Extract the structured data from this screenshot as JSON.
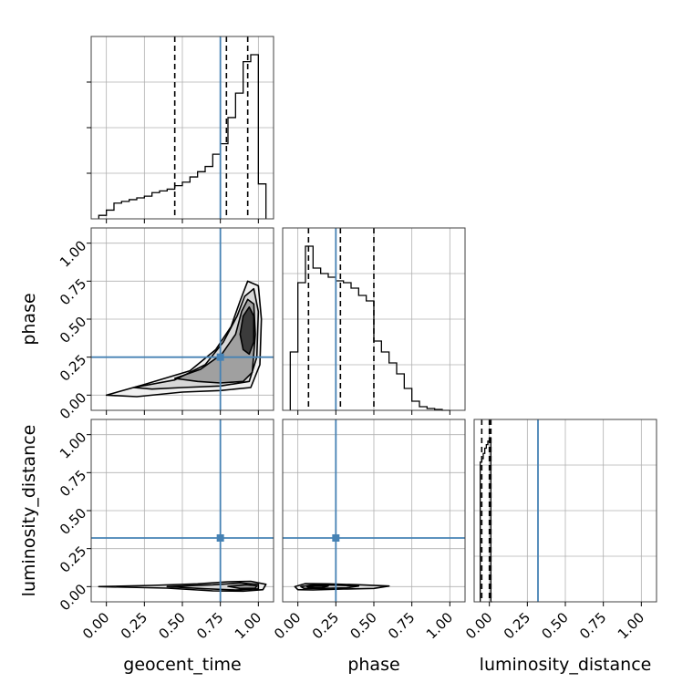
{
  "chart_data": {
    "type": "corner",
    "parameters": [
      "geocent_time",
      "phase",
      "luminosity_distance"
    ],
    "truths": {
      "geocent_time": 0.75,
      "phase": 0.25,
      "luminosity_distance": 0.32
    },
    "truth_color": "#4682b4",
    "tick_labels": [
      "0.00",
      "0.25",
      "0.50",
      "0.75",
      "1.00"
    ],
    "axis_range": [
      -0.1,
      1.1
    ],
    "grid": true,
    "histograms": [
      {
        "param": "geocent_time",
        "bin_edges": [
          -0.05,
          0.0,
          0.05,
          0.1,
          0.15,
          0.2,
          0.25,
          0.3,
          0.35,
          0.4,
          0.45,
          0.5,
          0.55,
          0.6,
          0.65,
          0.7,
          0.75,
          0.8,
          0.85,
          0.9,
          0.95,
          1.0,
          1.05
        ],
        "counts": [
          0.02,
          0.05,
          0.09,
          0.1,
          0.11,
          0.12,
          0.13,
          0.15,
          0.16,
          0.17,
          0.19,
          0.21,
          0.24,
          0.27,
          0.3,
          0.37,
          0.43,
          0.58,
          0.72,
          0.9,
          0.94,
          0.2
        ],
        "quantiles": [
          0.45,
          0.79,
          0.93
        ]
      },
      {
        "param": "phase",
        "bin_edges": [
          -0.05,
          0.0,
          0.05,
          0.1,
          0.15,
          0.2,
          0.25,
          0.3,
          0.35,
          0.4,
          0.45,
          0.5,
          0.55,
          0.6,
          0.65,
          0.7,
          0.75,
          0.8,
          0.85,
          0.9,
          0.95,
          1.0
        ],
        "counts": [
          0.32,
          0.7,
          0.9,
          0.78,
          0.75,
          0.73,
          0.71,
          0.7,
          0.67,
          0.63,
          0.6,
          0.38,
          0.32,
          0.26,
          0.2,
          0.12,
          0.05,
          0.02,
          0.01,
          0.005,
          0.0
        ],
        "quantiles": [
          0.07,
          0.28,
          0.5
        ]
      },
      {
        "param": "luminosity_distance",
        "bin_edges": [
          -0.06,
          -0.05,
          -0.04,
          -0.03,
          -0.02,
          -0.01,
          0.0,
          0.01,
          0.02
        ],
        "counts": [
          0.8,
          0.82,
          0.85,
          0.88,
          0.9,
          0.92,
          0.94,
          0.0
        ],
        "quantiles": [
          -0.05,
          0.0,
          0.01
        ]
      }
    ],
    "panels_2d": [
      {
        "x": "geocent_time",
        "y": "phase",
        "contours": [
          [
            [
              0.0,
              0.0
            ],
            [
              0.25,
              0.07
            ],
            [
              0.55,
              0.16
            ],
            [
              0.72,
              0.3
            ],
            [
              0.82,
              0.45
            ],
            [
              0.88,
              0.62
            ],
            [
              0.93,
              0.75
            ],
            [
              1.0,
              0.72
            ],
            [
              1.02,
              0.5
            ],
            [
              1.01,
              0.2
            ],
            [
              0.95,
              0.05
            ],
            [
              0.75,
              0.03
            ],
            [
              0.5,
              0.02
            ],
            [
              0.2,
              -0.01
            ],
            [
              0.0,
              0.0
            ]
          ],
          [
            [
              0.18,
              0.05
            ],
            [
              0.45,
              0.1
            ],
            [
              0.65,
              0.2
            ],
            [
              0.77,
              0.35
            ],
            [
              0.86,
              0.52
            ],
            [
              0.91,
              0.65
            ],
            [
              0.97,
              0.7
            ],
            [
              1.0,
              0.55
            ],
            [
              0.99,
              0.25
            ],
            [
              0.94,
              0.09
            ],
            [
              0.75,
              0.06
            ],
            [
              0.5,
              0.05
            ],
            [
              0.3,
              0.04
            ],
            [
              0.18,
              0.05
            ]
          ],
          [
            [
              0.45,
              0.11
            ],
            [
              0.62,
              0.17
            ],
            [
              0.76,
              0.27
            ],
            [
              0.85,
              0.4
            ],
            [
              0.89,
              0.55
            ],
            [
              0.93,
              0.63
            ],
            [
              0.97,
              0.6
            ],
            [
              0.98,
              0.4
            ],
            [
              0.96,
              0.15
            ],
            [
              0.9,
              0.09
            ],
            [
              0.75,
              0.08
            ],
            [
              0.6,
              0.09
            ],
            [
              0.45,
              0.11
            ]
          ],
          [
            [
              0.88,
              0.4
            ],
            [
              0.9,
              0.52
            ],
            [
              0.94,
              0.58
            ],
            [
              0.97,
              0.52
            ],
            [
              0.97,
              0.35
            ],
            [
              0.94,
              0.27
            ],
            [
              0.9,
              0.3
            ],
            [
              0.88,
              0.4
            ]
          ]
        ]
      },
      {
        "x": "geocent_time",
        "y": "luminosity_distance",
        "contours": [
          [
            [
              -0.05,
              0.0
            ],
            [
              0.3,
              0.008
            ],
            [
              0.6,
              0.018
            ],
            [
              0.8,
              0.032
            ],
            [
              0.95,
              0.035
            ],
            [
              1.05,
              0.015
            ],
            [
              1.03,
              -0.02
            ],
            [
              0.9,
              -0.03
            ],
            [
              0.7,
              -0.028
            ],
            [
              0.4,
              -0.01
            ],
            [
              -0.05,
              0.0
            ]
          ],
          [
            [
              0.4,
              0.0
            ],
            [
              0.7,
              0.012
            ],
            [
              0.88,
              0.024
            ],
            [
              1.0,
              0.015
            ],
            [
              1.0,
              -0.015
            ],
            [
              0.85,
              -0.022
            ],
            [
              0.65,
              -0.014
            ],
            [
              0.4,
              0.0
            ]
          ],
          [
            [
              0.8,
              0.002
            ],
            [
              0.92,
              0.012
            ],
            [
              0.99,
              0.005
            ],
            [
              0.98,
              -0.01
            ],
            [
              0.88,
              -0.012
            ],
            [
              0.8,
              0.002
            ]
          ]
        ]
      },
      {
        "x": "phase",
        "y": "luminosity_distance",
        "contours": [
          [
            [
              -0.02,
              0.0
            ],
            [
              0.05,
              0.02
            ],
            [
              0.2,
              0.018
            ],
            [
              0.4,
              0.012
            ],
            [
              0.6,
              0.004
            ],
            [
              0.5,
              -0.012
            ],
            [
              0.3,
              -0.016
            ],
            [
              0.1,
              -0.022
            ],
            [
              0.0,
              -0.02
            ],
            [
              -0.02,
              0.0
            ]
          ],
          [
            [
              0.02,
              0.0
            ],
            [
              0.1,
              0.012
            ],
            [
              0.25,
              0.01
            ],
            [
              0.4,
              0.004
            ],
            [
              0.32,
              -0.008
            ],
            [
              0.15,
              -0.012
            ],
            [
              0.04,
              -0.012
            ],
            [
              0.02,
              0.0
            ]
          ],
          [
            [
              0.06,
              0.0
            ],
            [
              0.12,
              0.006
            ],
            [
              0.2,
              0.004
            ],
            [
              0.16,
              -0.005
            ],
            [
              0.08,
              -0.006
            ],
            [
              0.06,
              0.0
            ]
          ]
        ]
      }
    ]
  }
}
